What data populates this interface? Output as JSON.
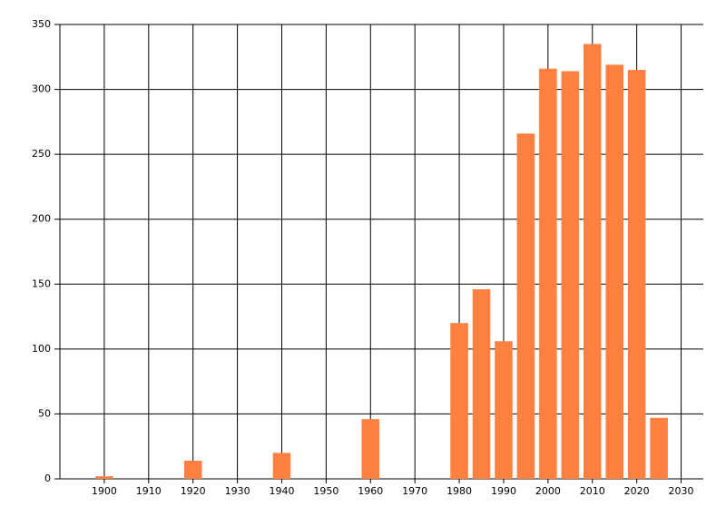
{
  "chart_data": {
    "type": "bar",
    "x": [
      1900,
      1920,
      1940,
      1960,
      1980,
      1985,
      1990,
      1995,
      2000,
      2005,
      2010,
      2015,
      2020,
      2025
    ],
    "values": [
      2,
      14,
      20,
      46,
      120,
      146,
      106,
      266,
      316,
      314,
      335,
      319,
      315,
      47
    ],
    "color": "#ff8040",
    "xlim": [
      1890,
      2035
    ],
    "xticks": [
      1900,
      1910,
      1920,
      1930,
      1940,
      1950,
      1960,
      1970,
      1980,
      1990,
      2000,
      2010,
      2020,
      2030
    ],
    "ylim": [
      0,
      350
    ],
    "yticks": [
      0,
      50,
      100,
      150,
      200,
      250,
      300,
      350
    ],
    "grid": true
  }
}
